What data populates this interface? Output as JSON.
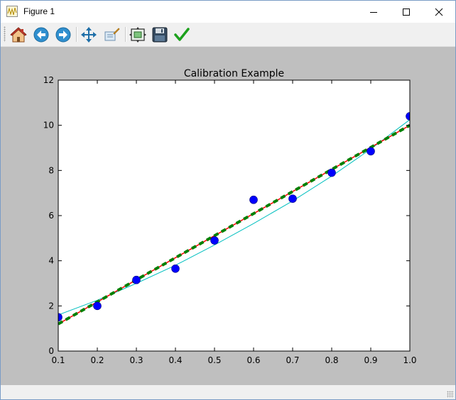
{
  "window": {
    "title": "Figure 1",
    "controls": {
      "minimize_icon": "minimize-icon",
      "maximize_icon": "maximize-icon",
      "close_icon": "close-icon"
    }
  },
  "toolbar": {
    "buttons": [
      {
        "name": "home",
        "icon": "home-icon"
      },
      {
        "name": "back",
        "icon": "back-arrow-icon"
      },
      {
        "name": "forward",
        "icon": "forward-arrow-icon"
      },
      {
        "name": "pan",
        "icon": "pan-move-icon"
      },
      {
        "name": "zoom",
        "icon": "zoom-rect-icon"
      },
      {
        "name": "subplots",
        "icon": "subplots-config-icon"
      },
      {
        "name": "save",
        "icon": "save-floppy-icon"
      },
      {
        "name": "edit",
        "icon": "checkmark-icon"
      }
    ]
  },
  "colors": {
    "figure_bg": "#bfbfbf",
    "axes_bg": "#ffffff",
    "points": "#0000ff",
    "fit_curve": "#00bfbf",
    "linear_fit": "#ff0000",
    "dashed_fit": "#008000"
  },
  "chart_data": {
    "type": "line",
    "title": "Calibration Example",
    "xlabel": "",
    "ylabel": "",
    "xlim": [
      0.1,
      1.0
    ],
    "ylim": [
      0,
      12
    ],
    "xticks": [
      "0.1",
      "0.2",
      "0.3",
      "0.4",
      "0.5",
      "0.6",
      "0.7",
      "0.8",
      "0.9",
      "1.0"
    ],
    "yticks": [
      "0",
      "2",
      "4",
      "6",
      "8",
      "10",
      "12"
    ],
    "grid": false,
    "legend": "none",
    "series": [
      {
        "kind": "scatter",
        "x": [
          0.1,
          0.2,
          0.3,
          0.4,
          0.5,
          0.6,
          0.7,
          0.8,
          0.9,
          1.0
        ],
        "y": [
          1.5,
          2.0,
          3.15,
          3.65,
          4.9,
          6.7,
          6.75,
          7.9,
          8.85,
          10.4
        ]
      },
      {
        "kind": "curve",
        "x": [
          0.1,
          0.2,
          0.3,
          0.4,
          0.5,
          0.6,
          0.7,
          0.8,
          0.9,
          1.0
        ],
        "y": [
          1.6,
          2.25,
          3.0,
          3.8,
          4.7,
          5.65,
          6.65,
          7.75,
          8.95,
          10.25
        ]
      },
      {
        "kind": "line",
        "x": [
          0.1,
          1.0
        ],
        "y": [
          1.2,
          10.0
        ]
      },
      {
        "kind": "dashed-line",
        "x": [
          0.1,
          1.0
        ],
        "y": [
          1.2,
          10.0
        ]
      }
    ]
  }
}
